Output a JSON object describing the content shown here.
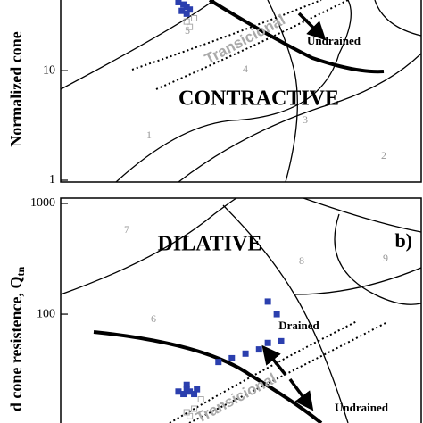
{
  "chart_data": [
    {
      "type": "scatter",
      "y_label": "Normalized cone",
      "log_y": true,
      "log_x": true,
      "xlim": [
        0.1,
        10
      ],
      "ylim": [
        1,
        44
      ],
      "yticks": [
        1,
        10
      ],
      "annotations": [
        "Undrained",
        "Transicional",
        "CONTRACTIVE",
        "1",
        "2",
        "3",
        "4",
        "5"
      ],
      "series": [
        {
          "name": "blue",
          "color": "#2b3fae",
          "filled": true,
          "x": [
            0.45,
            0.48,
            0.5,
            0.52,
            0.47,
            0.5
          ],
          "values": [
            42,
            40,
            38,
            36,
            35,
            33
          ]
        },
        {
          "name": "gray",
          "color": "#aaaaaa",
          "filled": false,
          "x": [
            0.5,
            0.52,
            0.55
          ],
          "values": [
            28,
            25,
            30
          ]
        }
      ]
    },
    {
      "type": "scatter",
      "y_label": "d cone resistence, Q",
      "y_label_sub": "tn",
      "panel_label": "b)",
      "log_y": true,
      "log_x": true,
      "xlim": [
        0.1,
        10
      ],
      "ylim": [
        10.4,
        1000
      ],
      "yticks": [
        100,
        1000
      ],
      "annotations": [
        "DILATIVE",
        "Drained",
        "Undrained",
        "Transicional",
        "6",
        "7",
        "8",
        "9"
      ],
      "series": [
        {
          "name": "blue",
          "color": "#2b3fae",
          "filled": true,
          "x": [
            0.45,
            0.48,
            0.5,
            0.52,
            0.55,
            0.57,
            0.5,
            0.75,
            0.89,
            1.06,
            1.26,
            1.41,
            1.67,
            1.41,
            1.58
          ],
          "values": [
            20,
            19,
            21,
            20,
            19,
            21,
            23,
            37,
            40,
            44,
            48,
            55,
            57,
            130,
            100
          ]
        },
        {
          "name": "gray",
          "color": "#aaaaaa",
          "filled": false,
          "x": [
            0.5,
            0.55,
            0.6,
            0.52
          ],
          "values": [
            13,
            14,
            17,
            12
          ]
        }
      ]
    }
  ]
}
